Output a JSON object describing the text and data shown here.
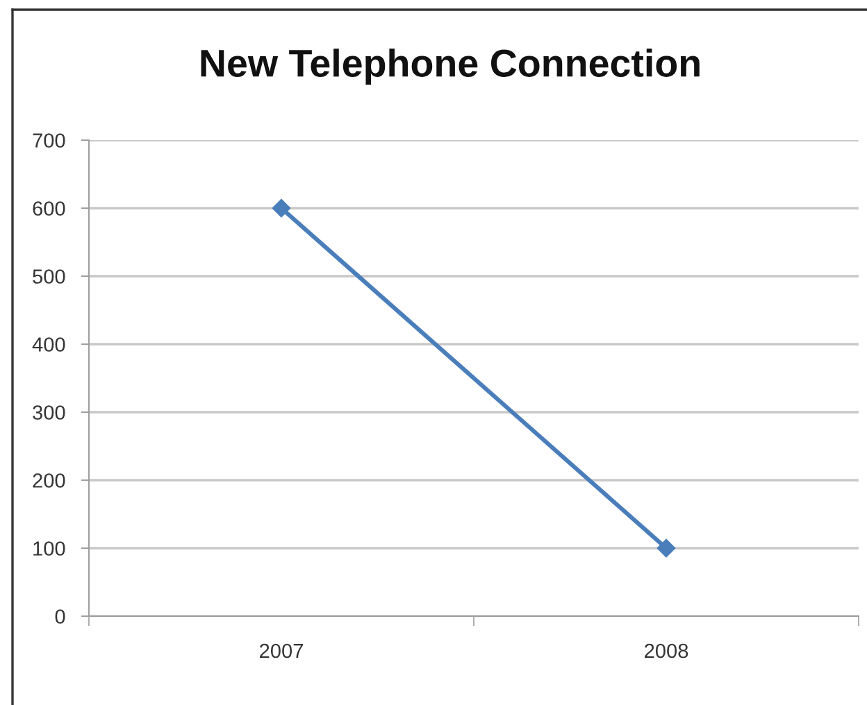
{
  "chart_data": {
    "type": "line",
    "title": "New Telephone Connection",
    "categories": [
      "2007",
      "2008"
    ],
    "series": [
      {
        "color": "#4a7ebb",
        "values": [
          600,
          100
        ]
      }
    ],
    "ylim": [
      0,
      700
    ],
    "yticks": [
      0,
      100,
      200,
      300,
      400,
      500,
      600,
      700
    ],
    "grid": "y",
    "marker": "diamond",
    "line_style": "solid"
  }
}
